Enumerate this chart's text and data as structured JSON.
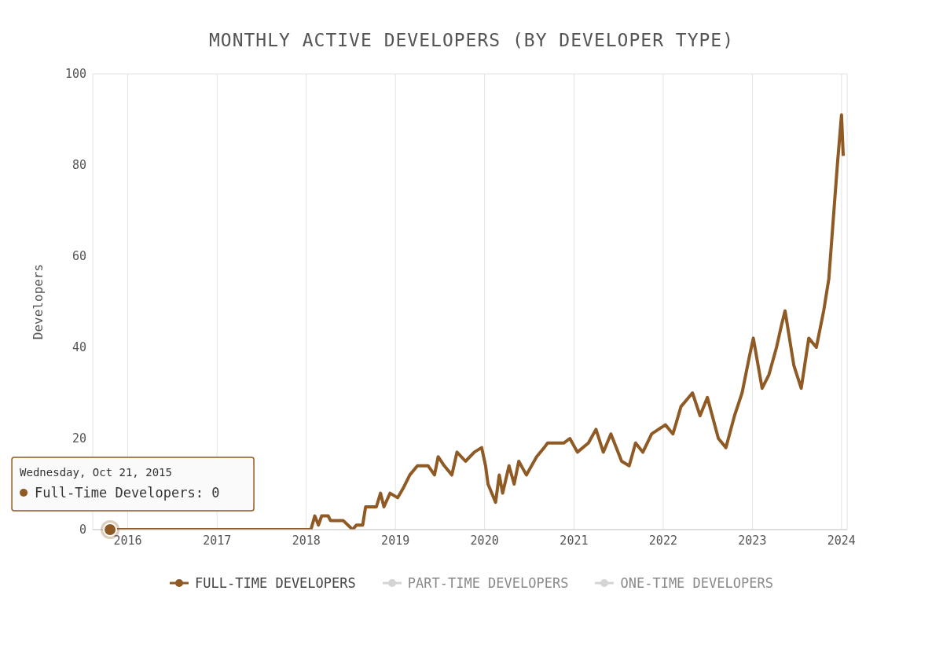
{
  "chart_data": {
    "type": "line",
    "title": "MONTHLY ACTIVE DEVELOPERS (BY DEVELOPER TYPE)",
    "ylabel": "Developers",
    "xlim": [
      "2015-08-11",
      "2024-01-24"
    ],
    "xticks": [
      "2016",
      "2017",
      "2018",
      "2019",
      "2020",
      "2021",
      "2022",
      "2023",
      "2024"
    ],
    "ylim": [
      0,
      100
    ],
    "yticks": [
      0,
      20,
      40,
      60,
      80,
      100
    ],
    "grid": true,
    "legend": "bottom",
    "marker": "none",
    "line_style": "solid",
    "annotations": [
      {
        "text": "Wednesday, Oct 21, 2015\nFull-Time Developers: 0",
        "x": "2015-10-21",
        "y": 0
      }
    ],
    "x": [
      "2015-10-21",
      "2018-01-20",
      "2018-02-05",
      "2018-02-20",
      "2018-03-05",
      "2018-04-01",
      "2018-04-10",
      "2018-06-01",
      "2018-07-10",
      "2018-07-25",
      "2018-08-20",
      "2018-09-01",
      "2018-10-15",
      "2018-11-01",
      "2018-11-15",
      "2018-12-10",
      "2019-01-10",
      "2019-02-01",
      "2019-03-01",
      "2019-04-01",
      "2019-05-15",
      "2019-06-10",
      "2019-06-25",
      "2019-07-20",
      "2019-08-20",
      "2019-09-10",
      "2019-10-15",
      "2019-11-20",
      "2019-12-20",
      "2020-01-05",
      "2020-01-15",
      "2020-02-15",
      "2020-03-01",
      "2020-03-15",
      "2020-04-10",
      "2020-05-01",
      "2020-05-20",
      "2020-06-20",
      "2020-08-01",
      "2020-09-01",
      "2020-09-15",
      "2020-11-20",
      "2020-12-15",
      "2021-01-15",
      "2021-03-01",
      "2021-04-01",
      "2021-05-01",
      "2021-06-01",
      "2021-07-15",
      "2021-08-15",
      "2021-09-10",
      "2021-10-10",
      "2021-11-15",
      "2022-01-10",
      "2022-02-10",
      "2022-03-15",
      "2022-05-01",
      "2022-06-01",
      "2022-07-01",
      "2022-08-15",
      "2022-09-15",
      "2022-10-20",
      "2022-11-20",
      "2022-12-20",
      "2023-01-05",
      "2023-02-10",
      "2023-03-10",
      "2023-04-10",
      "2023-05-01",
      "2023-05-15",
      "2023-06-20",
      "2023-07-20",
      "2023-08-20",
      "2023-09-20",
      "2023-10-20",
      "2023-11-10",
      "2023-12-01",
      "2023-12-15",
      "2024-01-01",
      "2024-01-08"
    ],
    "series": [
      {
        "name": "FULL-TIME DEVELOPERS",
        "color": "#8f5a24",
        "values": [
          0,
          0,
          3,
          1,
          3,
          3,
          2,
          2,
          0,
          1,
          1,
          5,
          5,
          8,
          5,
          8,
          7,
          9,
          12,
          14,
          14,
          12,
          16,
          14,
          12,
          17,
          15,
          17,
          18,
          14,
          10,
          6,
          12,
          8,
          14,
          10,
          15,
          12,
          16,
          18,
          19,
          19,
          20,
          17,
          19,
          22,
          17,
          21,
          15,
          14,
          19,
          17,
          21,
          23,
          21,
          27,
          30,
          25,
          29,
          20,
          18,
          25,
          30,
          38,
          42,
          31,
          34,
          40,
          45,
          48,
          36,
          31,
          42,
          40,
          48,
          55,
          70,
          80,
          91,
          82
        ]
      },
      {
        "name": "PART-TIME DEVELOPERS",
        "color": "#d4d4d4",
        "values": [
          null,
          null,
          null,
          null,
          null,
          null,
          null,
          null,
          null,
          null,
          null,
          null,
          null,
          null,
          null,
          null,
          null,
          null,
          null,
          null,
          null,
          null,
          null,
          null,
          null,
          null,
          null,
          null,
          null,
          null,
          null,
          null,
          null,
          null,
          null,
          null,
          null,
          null,
          null,
          null,
          null,
          null,
          null,
          null,
          null,
          null,
          null,
          null,
          null,
          null,
          null,
          null,
          null,
          null,
          null,
          null,
          null,
          null,
          null,
          null,
          null,
          null,
          null,
          null,
          null,
          null,
          null,
          null,
          null,
          null,
          null,
          null,
          null,
          null,
          null,
          null,
          null,
          null,
          null,
          null
        ]
      },
      {
        "name": "ONE-TIME DEVELOPERS",
        "color": "#d4d4d4",
        "values": [
          null,
          null,
          null,
          null,
          null,
          null,
          null,
          null,
          null,
          null,
          null,
          null,
          null,
          null,
          null,
          null,
          null,
          null,
          null,
          null,
          null,
          null,
          null,
          null,
          null,
          null,
          null,
          null,
          null,
          null,
          null,
          null,
          null,
          null,
          null,
          null,
          null,
          null,
          null,
          null,
          null,
          null,
          null,
          null,
          null,
          null,
          null,
          null,
          null,
          null,
          null,
          null,
          null,
          null,
          null,
          null,
          null,
          null,
          null,
          null,
          null,
          null,
          null,
          null,
          null,
          null,
          null,
          null,
          null,
          null,
          null,
          null,
          null,
          null,
          null,
          null,
          null,
          null,
          null,
          null
        ]
      }
    ]
  }
}
